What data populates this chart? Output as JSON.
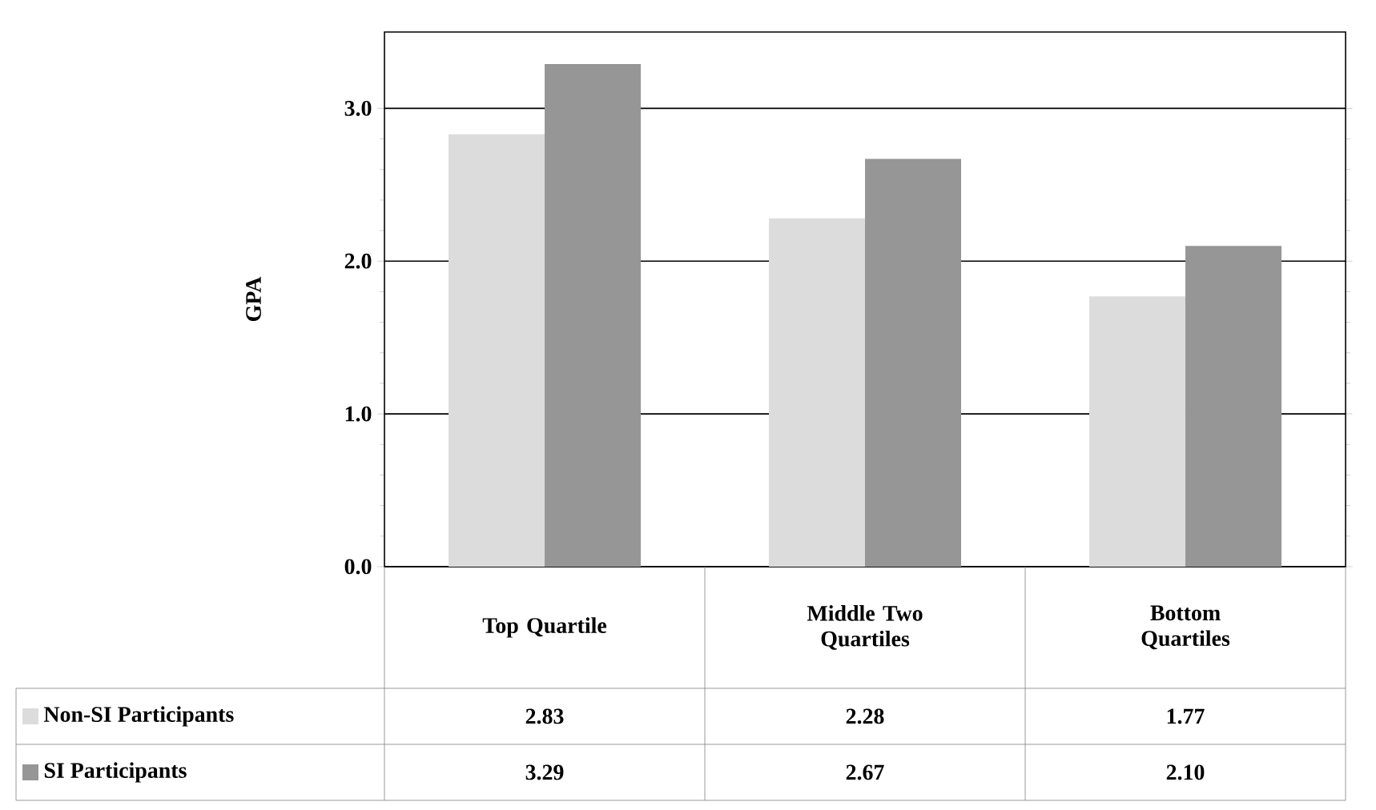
{
  "chart_data": {
    "type": "bar",
    "ylabel": "GPA",
    "categories": [
      "Top Quartile",
      "Middle Two Quartiles",
      "Bottom Quartiles"
    ],
    "series": [
      {
        "name": "Non-SI Participants",
        "color": "#dcdcdc",
        "values": [
          2.83,
          2.28,
          1.77
        ],
        "value_labels": [
          "2.83",
          "2.28",
          "1.77"
        ]
      },
      {
        "name": "SI Participants",
        "color": "#969696",
        "values": [
          3.29,
          2.67,
          2.1
        ],
        "value_labels": [
          "3.29",
          "2.67",
          "2.10"
        ]
      }
    ],
    "ylim": [
      0,
      3.5
    ],
    "yticks": [
      {
        "value": 0,
        "label": "0.0"
      },
      {
        "value": 1,
        "label": "1.0"
      },
      {
        "value": 2,
        "label": "2.0"
      },
      {
        "value": 3,
        "label": "3.0"
      }
    ],
    "grid": "y",
    "legend": "bottom"
  }
}
